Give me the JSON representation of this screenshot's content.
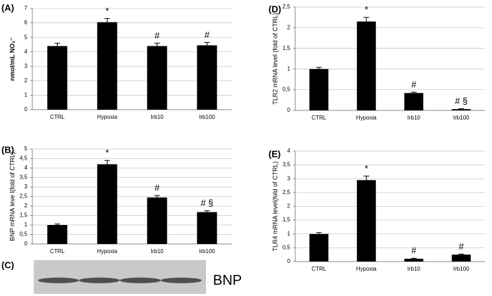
{
  "chart_data": [
    {
      "type": "bar",
      "panel": "(A)",
      "y_label": "nmol/mL NO₂⁻",
      "categories": [
        "CTRL",
        "Hypoxia",
        "Irb10",
        "Irb100"
      ],
      "values": [
        4.4,
        6.05,
        4.4,
        4.45
      ],
      "errors": [
        0.2,
        0.25,
        0.2,
        0.2
      ],
      "annotations": [
        null,
        "*",
        "#",
        "#"
      ],
      "color": "#000000",
      "ylim": [
        0,
        7
      ],
      "yticks": [
        0,
        1,
        2,
        3,
        4,
        5,
        6,
        7
      ],
      "grid": true
    },
    {
      "type": "bar",
      "panel": "(B)",
      "y_label": "BNP mRNA leve l(fold of CTRL)",
      "categories": [
        "CTRL",
        "Hypoxia",
        "Irb10",
        "Irb100"
      ],
      "values": [
        1.0,
        4.2,
        2.45,
        1.68
      ],
      "errors": [
        0.05,
        0.2,
        0.1,
        0.07
      ],
      "annotations": [
        null,
        "*",
        "#",
        "# §"
      ],
      "color": "#000000",
      "ylim": [
        0,
        5
      ],
      "yticks": [
        0,
        {
          "value": 0.5,
          "label": "0,5"
        },
        1,
        {
          "value": 1.5,
          "label": "1,5"
        },
        2,
        {
          "value": 2.5,
          "label": "2,5"
        },
        3,
        {
          "value": 3.5,
          "label": "3,5"
        },
        4,
        {
          "value": 4.5,
          "label": "4,5"
        },
        5
      ],
      "grid": true
    },
    {
      "type": "blot",
      "panel": "(C)",
      "label": "BNP"
    },
    {
      "type": "bar",
      "panel": "(D)",
      "y_label": "TLR2 mRNA level (fold of CTRL)",
      "categories": [
        "CTRL",
        "Hypoxia",
        "Irb10",
        "Irb100"
      ],
      "values": [
        1.0,
        2.15,
        0.42,
        0.03
      ],
      "errors": [
        0.04,
        0.1,
        0.02,
        0.01
      ],
      "annotations": [
        null,
        "*",
        "#",
        "# §"
      ],
      "color": "#000000",
      "ylim": [
        0,
        2.5
      ],
      "yticks": [
        0,
        {
          "value": 0.5,
          "label": "0,5"
        },
        1,
        {
          "value": 1.5,
          "label": "1,5"
        },
        2,
        {
          "value": 2.5,
          "label": "2,5"
        }
      ],
      "grid": true
    },
    {
      "type": "bar",
      "panel": "(E)",
      "y_label": "TLR4 mRNA level(fold of CTRL)",
      "categories": [
        "CTRL",
        "Hypoxia",
        "Irb10",
        "Irb100"
      ],
      "values": [
        1.0,
        2.95,
        0.1,
        0.25
      ],
      "errors": [
        0.05,
        0.15,
        0.02,
        0.02
      ],
      "annotations": [
        null,
        "*",
        "#",
        "#"
      ],
      "color": "#000000",
      "ylim": [
        0,
        4
      ],
      "yticks": [
        0,
        {
          "value": 0.5,
          "label": "0,5"
        },
        1,
        {
          "value": 1.5,
          "label": "1,5"
        },
        2,
        {
          "value": 2.5,
          "label": "2,5"
        },
        3,
        {
          "value": 3.5,
          "label": "3,5"
        },
        4
      ],
      "grid": true
    }
  ]
}
